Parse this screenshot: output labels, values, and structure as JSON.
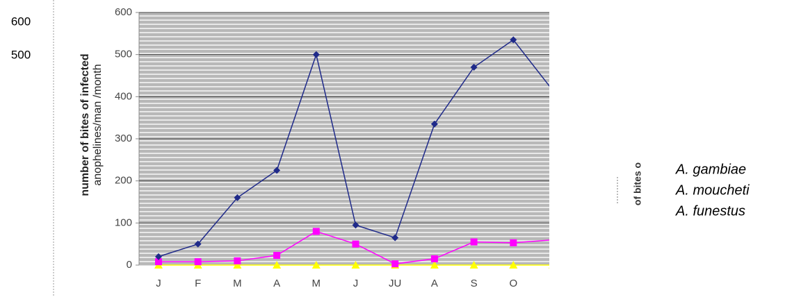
{
  "chart_data": {
    "type": "line",
    "y_label_lines": [
      "number of bites of infected",
      "anophelines/man /month"
    ],
    "categories": [
      "J",
      "F",
      "M",
      "A",
      "M",
      "J",
      "JU",
      "A",
      "S",
      "O",
      null
    ],
    "series": [
      {
        "name": "A. gambiae",
        "color": "#1f2a8a",
        "marker": "diamond",
        "values": [
          20,
          50,
          160,
          225,
          500,
          95,
          65,
          335,
          470,
          535,
          415
        ]
      },
      {
        "name": "A. moucheti",
        "color": "#ff00ff",
        "marker": "square",
        "values": [
          8,
          8,
          10,
          23,
          80,
          50,
          3,
          15,
          55,
          53,
          60
        ]
      },
      {
        "name": "A. funestus",
        "color": "#ffff00",
        "marker": "triangle",
        "values": [
          0,
          0,
          0,
          0,
          0,
          0,
          0,
          0,
          0,
          0,
          0
        ]
      }
    ],
    "ylim": [
      0,
      600
    ],
    "yticks": [
      0,
      100,
      200,
      300,
      400,
      500,
      600
    ],
    "grid": true,
    "legend_fragment": "of bites o",
    "left_fragment_ticks": [
      600,
      500
    ]
  }
}
